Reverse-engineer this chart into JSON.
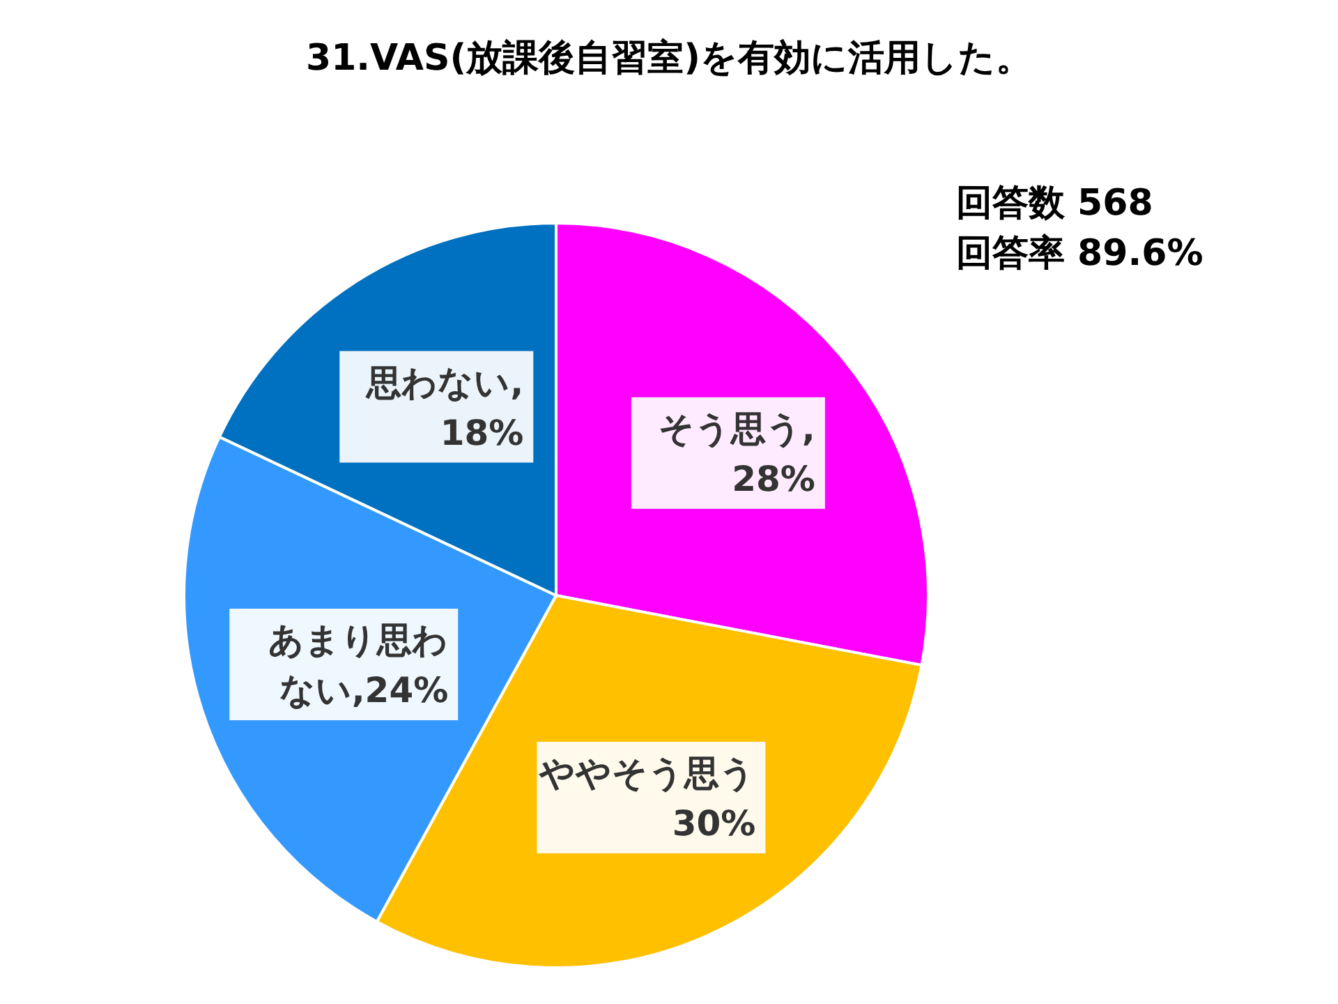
{
  "chart_data": {
    "type": "pie",
    "title": "31.VAS(放課後自習室)を有効に活用した。",
    "categories": [
      "そう思う",
      "ややそう思う",
      "あまり思わない",
      "思わない"
    ],
    "values": [
      28,
      30,
      24,
      18
    ],
    "colors": [
      "#ff00ff",
      "#ffc000",
      "#3399ff",
      "#0070c0"
    ],
    "value_labels": [
      ",28%",
      "30%",
      ",24%",
      ",18%"
    ],
    "annotations": [
      "回答数 568",
      "回答率 89.6%"
    ],
    "legend": false
  }
}
